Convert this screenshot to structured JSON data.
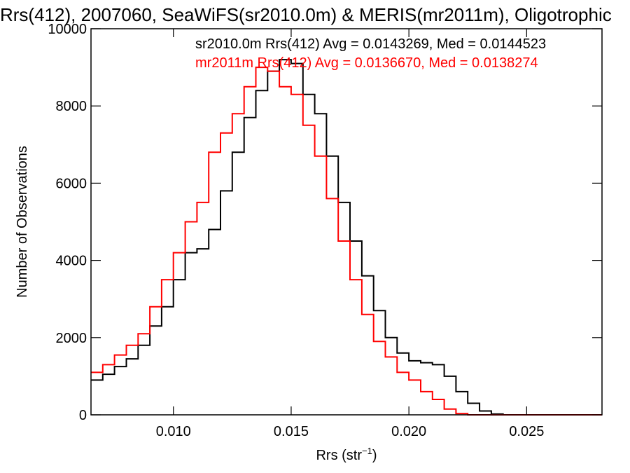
{
  "chart_data": {
    "type": "line",
    "title": "Rrs(412), 2007060, SeaWiFS(sr2010.0m) & MERIS(mr2011m), Oligotrophic",
    "xlabel": "Rrs (str",
    "xlabel_sup": "−1",
    "xlabel_end": ")",
    "ylabel": "Number of Observations",
    "xlim": [
      0.0065,
      0.0282
    ],
    "ylim": [
      0,
      10000
    ],
    "x_ticks": [
      0.01,
      0.015,
      0.02,
      0.025
    ],
    "x_tick_labels": [
      "0.010",
      "0.015",
      "0.020",
      "0.025"
    ],
    "y_ticks": [
      0,
      2000,
      4000,
      6000,
      8000,
      10000
    ],
    "y_tick_labels": [
      "0",
      "2000",
      "4000",
      "6000",
      "8000",
      "10000"
    ],
    "grid": false,
    "annotations": [
      {
        "text": "sr2010.0m Rrs(412) Avg = 0.0143269, Med = 0.0144523",
        "color": "#000000"
      },
      {
        "text": "mr2011m Rrs(412) Avg = 0.0136670, Med = 0.0138274",
        "color": "#ff0000"
      }
    ],
    "series": [
      {
        "color": "#000000",
        "step": "histogram",
        "x": [
          0.0065,
          0.007,
          0.0075,
          0.008,
          0.0085,
          0.009,
          0.0095,
          0.01,
          0.0105,
          0.011,
          0.0115,
          0.012,
          0.0125,
          0.013,
          0.0135,
          0.014,
          0.0145,
          0.015,
          0.0155,
          0.016,
          0.0165,
          0.017,
          0.0175,
          0.018,
          0.0185,
          0.019,
          0.0195,
          0.02,
          0.0205,
          0.021,
          0.0215,
          0.022,
          0.0225,
          0.023,
          0.0235,
          0.024,
          0.025,
          0.026,
          0.027,
          0.0282
        ],
        "y": [
          900,
          1050,
          1250,
          1450,
          1800,
          2300,
          2800,
          3500,
          4200,
          4300,
          4800,
          5800,
          6800,
          7700,
          8400,
          8900,
          9200,
          9100,
          8300,
          7800,
          6700,
          5500,
          4500,
          3600,
          2700,
          2000,
          1600,
          1400,
          1350,
          1300,
          1000,
          600,
          300,
          100,
          20,
          0,
          0,
          0,
          0,
          0
        ]
      },
      {
        "color": "#ff0000",
        "step": "histogram",
        "x": [
          0.0065,
          0.007,
          0.0075,
          0.008,
          0.0085,
          0.009,
          0.0095,
          0.01,
          0.0105,
          0.011,
          0.0115,
          0.012,
          0.0125,
          0.013,
          0.0135,
          0.014,
          0.0145,
          0.015,
          0.0155,
          0.016,
          0.0165,
          0.017,
          0.0175,
          0.018,
          0.0185,
          0.019,
          0.0195,
          0.02,
          0.0205,
          0.021,
          0.0215,
          0.022,
          0.0225,
          0.023,
          0.0235,
          0.024,
          0.025,
          0.026,
          0.027,
          0.0282
        ],
        "y": [
          1100,
          1300,
          1550,
          1800,
          2100,
          2800,
          3500,
          4200,
          5000,
          5500,
          6800,
          7300,
          7800,
          8500,
          9000,
          8900,
          8500,
          8300,
          7500,
          6700,
          5600,
          4500,
          3500,
          2600,
          1900,
          1500,
          1100,
          900,
          600,
          400,
          150,
          30,
          0,
          0,
          0,
          0,
          0,
          0,
          0,
          0
        ]
      }
    ]
  }
}
